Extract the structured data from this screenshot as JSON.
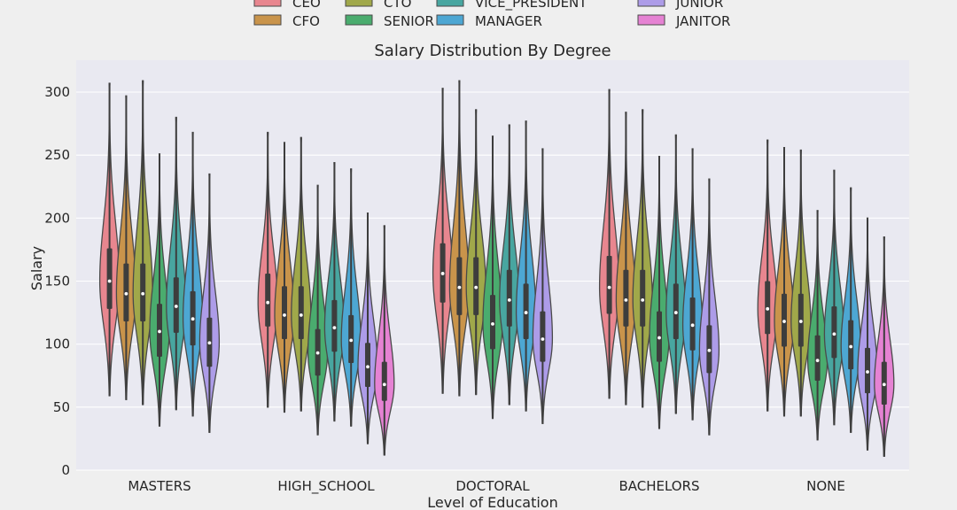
{
  "chart_data": {
    "type": "violin",
    "title": "Salary Distribution By Degree",
    "xlabel": "Level of Education",
    "ylabel": "Salary",
    "ylim": [
      0,
      320
    ],
    "yticks": [
      0,
      50,
      100,
      150,
      200,
      250,
      300
    ],
    "grid": true,
    "legend_position": "top-center",
    "categories": [
      "MASTERS",
      "HIGH_SCHOOL",
      "DOCTORAL",
      "BACHELORS",
      "NONE"
    ],
    "series": [
      {
        "name": "CEO",
        "color": "#e8868f",
        "data": [
          {
            "min": 59,
            "q1": 128,
            "median": 150,
            "q3": 176,
            "max": 307
          },
          {
            "min": 50,
            "q1": 114,
            "median": 133,
            "q3": 156,
            "max": 268
          },
          {
            "min": 61,
            "q1": 133,
            "median": 156,
            "q3": 180,
            "max": 303
          },
          {
            "min": 57,
            "q1": 124,
            "median": 145,
            "q3": 170,
            "max": 302
          },
          {
            "min": 47,
            "q1": 108,
            "median": 128,
            "q3": 150,
            "max": 262
          }
        ]
      },
      {
        "name": "CFO",
        "color": "#c9944b",
        "data": [
          {
            "min": 56,
            "q1": 118,
            "median": 140,
            "q3": 164,
            "max": 297
          },
          {
            "min": 46,
            "q1": 104,
            "median": 123,
            "q3": 146,
            "max": 260
          },
          {
            "min": 59,
            "q1": 123,
            "median": 145,
            "q3": 169,
            "max": 309
          },
          {
            "min": 52,
            "q1": 114,
            "median": 135,
            "q3": 159,
            "max": 284
          },
          {
            "min": 43,
            "q1": 98,
            "median": 118,
            "q3": 140,
            "max": 256
          }
        ]
      },
      {
        "name": "CTO",
        "color": "#a0a84a",
        "data": [
          {
            "min": 52,
            "q1": 118,
            "median": 140,
            "q3": 164,
            "max": 309
          },
          {
            "min": 47,
            "q1": 104,
            "median": 123,
            "q3": 146,
            "max": 264
          },
          {
            "min": 60,
            "q1": 123,
            "median": 145,
            "q3": 169,
            "max": 286
          },
          {
            "min": 50,
            "q1": 114,
            "median": 135,
            "q3": 159,
            "max": 286
          },
          {
            "min": 43,
            "q1": 98,
            "median": 118,
            "q3": 140,
            "max": 254
          }
        ]
      },
      {
        "name": "SENIOR",
        "color": "#4aac6e",
        "data": [
          {
            "min": 35,
            "q1": 90,
            "median": 110,
            "q3": 132,
            "max": 251
          },
          {
            "min": 28,
            "q1": 75,
            "median": 93,
            "q3": 112,
            "max": 226
          },
          {
            "min": 41,
            "q1": 96,
            "median": 116,
            "q3": 139,
            "max": 265
          },
          {
            "min": 33,
            "q1": 86,
            "median": 105,
            "q3": 126,
            "max": 249
          },
          {
            "min": 24,
            "q1": 71,
            "median": 87,
            "q3": 107,
            "max": 206
          }
        ]
      },
      {
        "name": "VICE_PRESIDENT",
        "color": "#48a6a0",
        "data": [
          {
            "min": 48,
            "q1": 109,
            "median": 130,
            "q3": 153,
            "max": 280
          },
          {
            "min": 39,
            "q1": 94,
            "median": 113,
            "q3": 135,
            "max": 244
          },
          {
            "min": 52,
            "q1": 114,
            "median": 135,
            "q3": 159,
            "max": 274
          },
          {
            "min": 45,
            "q1": 104,
            "median": 125,
            "q3": 148,
            "max": 266
          },
          {
            "min": 36,
            "q1": 89,
            "median": 108,
            "q3": 130,
            "max": 238
          }
        ]
      },
      {
        "name": "MANAGER",
        "color": "#4da7d3",
        "data": [
          {
            "min": 43,
            "q1": 99,
            "median": 120,
            "q3": 142,
            "max": 268
          },
          {
            "min": 35,
            "q1": 85,
            "median": 103,
            "q3": 123,
            "max": 239
          },
          {
            "min": 47,
            "q1": 104,
            "median": 125,
            "q3": 148,
            "max": 277
          },
          {
            "min": 40,
            "q1": 95,
            "median": 115,
            "q3": 137,
            "max": 255
          },
          {
            "min": 30,
            "q1": 80,
            "median": 98,
            "q3": 119,
            "max": 224
          }
        ]
      },
      {
        "name": "JUNIOR",
        "color": "#ad9ce8",
        "data": [
          {
            "min": 30,
            "q1": 82,
            "median": 101,
            "q3": 121,
            "max": 235
          },
          {
            "min": 21,
            "q1": 66,
            "median": 82,
            "q3": 101,
            "max": 204
          },
          {
            "min": 37,
            "q1": 86,
            "median": 104,
            "q3": 126,
            "max": 255
          },
          {
            "min": 28,
            "q1": 77,
            "median": 95,
            "q3": 115,
            "max": 231
          },
          {
            "min": 16,
            "q1": 61,
            "median": 78,
            "q3": 97,
            "max": 200
          }
        ]
      },
      {
        "name": "JANITOR",
        "color": "#e582d3",
        "data": [
          null,
          {
            "min": 12,
            "q1": 55,
            "median": 68,
            "q3": 86,
            "max": 194
          },
          null,
          null,
          {
            "min": 11,
            "q1": 52,
            "median": 68,
            "q3": 86,
            "max": 185
          }
        ]
      }
    ]
  }
}
